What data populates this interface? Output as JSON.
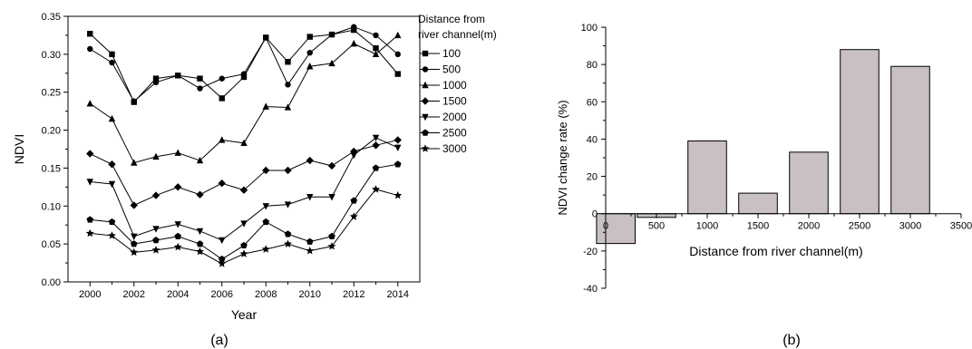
{
  "chart_data": [
    {
      "type": "line",
      "panel_label": "(a)",
      "xlabel": "Year",
      "ylabel": "NDVI",
      "xlim": [
        1999,
        2015
      ],
      "ylim": [
        0,
        0.35
      ],
      "x_ticks": [
        "2000",
        "2002",
        "2004",
        "2006",
        "2008",
        "2010",
        "2012",
        "2014"
      ],
      "y_ticks": [
        "0.00",
        "0.05",
        "0.10",
        "0.15",
        "0.20",
        "0.25",
        "0.30",
        "0.35"
      ],
      "legend_title": [
        "Distance from",
        "river channel(m)"
      ],
      "legend_placement": "right",
      "grid": false,
      "x": [
        2000,
        2001,
        2002,
        2003,
        2004,
        2005,
        2006,
        2007,
        2008,
        2009,
        2010,
        2011,
        2012,
        2013,
        2014
      ],
      "series": [
        {
          "name": "100",
          "marker": "square",
          "values": [
            0.327,
            0.3,
            0.237,
            0.268,
            0.272,
            0.268,
            0.242,
            0.27,
            0.322,
            0.29,
            0.323,
            0.326,
            0.332,
            0.308,
            0.274
          ]
        },
        {
          "name": "500",
          "marker": "circle",
          "values": [
            0.307,
            0.289,
            0.238,
            0.263,
            0.272,
            0.255,
            0.268,
            0.274,
            0.322,
            0.26,
            0.302,
            0.326,
            0.336,
            0.325,
            0.3
          ]
        },
        {
          "name": "1000",
          "marker": "triangle-up",
          "values": [
            0.235,
            0.215,
            0.157,
            0.165,
            0.17,
            0.16,
            0.187,
            0.183,
            0.231,
            0.23,
            0.284,
            0.288,
            0.314,
            0.3,
            0.325
          ]
        },
        {
          "name": "1500",
          "marker": "diamond",
          "values": [
            0.169,
            0.155,
            0.101,
            0.114,
            0.125,
            0.115,
            0.13,
            0.121,
            0.147,
            0.147,
            0.16,
            0.153,
            0.172,
            0.18,
            0.187
          ]
        },
        {
          "name": "2000",
          "marker": "triangle-down",
          "values": [
            0.132,
            0.129,
            0.06,
            0.07,
            0.076,
            0.067,
            0.055,
            0.077,
            0.1,
            0.102,
            0.112,
            0.112,
            0.167,
            0.19,
            0.177
          ]
        },
        {
          "name": "2500",
          "marker": "pentagon",
          "values": [
            0.082,
            0.079,
            0.05,
            0.055,
            0.06,
            0.05,
            0.03,
            0.048,
            0.079,
            0.063,
            0.053,
            0.06,
            0.107,
            0.15,
            0.155
          ]
        },
        {
          "name": "3000",
          "marker": "star",
          "values": [
            0.064,
            0.061,
            0.039,
            0.042,
            0.046,
            0.04,
            0.024,
            0.037,
            0.043,
            0.05,
            0.041,
            0.047,
            0.086,
            0.122,
            0.114
          ]
        }
      ]
    },
    {
      "type": "bar",
      "panel_label": "(b)",
      "xlabel": "Distance from river channel(m)",
      "ylabel": "NDVI change rate (%)",
      "xlim": [
        0,
        3500
      ],
      "ylim": [
        -40,
        100
      ],
      "x_ticks": [
        "0",
        "500",
        "1000",
        "1500",
        "2000",
        "2500",
        "3000",
        "3500"
      ],
      "y_ticks": [
        "-40",
        "-20",
        "0",
        "20",
        "40",
        "60",
        "80",
        "100"
      ],
      "bar_color": "#c8c0c2",
      "grid": false,
      "categories": [
        100,
        500,
        1000,
        1500,
        2000,
        2500,
        3000
      ],
      "values": [
        -16,
        -2,
        39,
        11,
        33,
        88,
        79
      ]
    }
  ]
}
